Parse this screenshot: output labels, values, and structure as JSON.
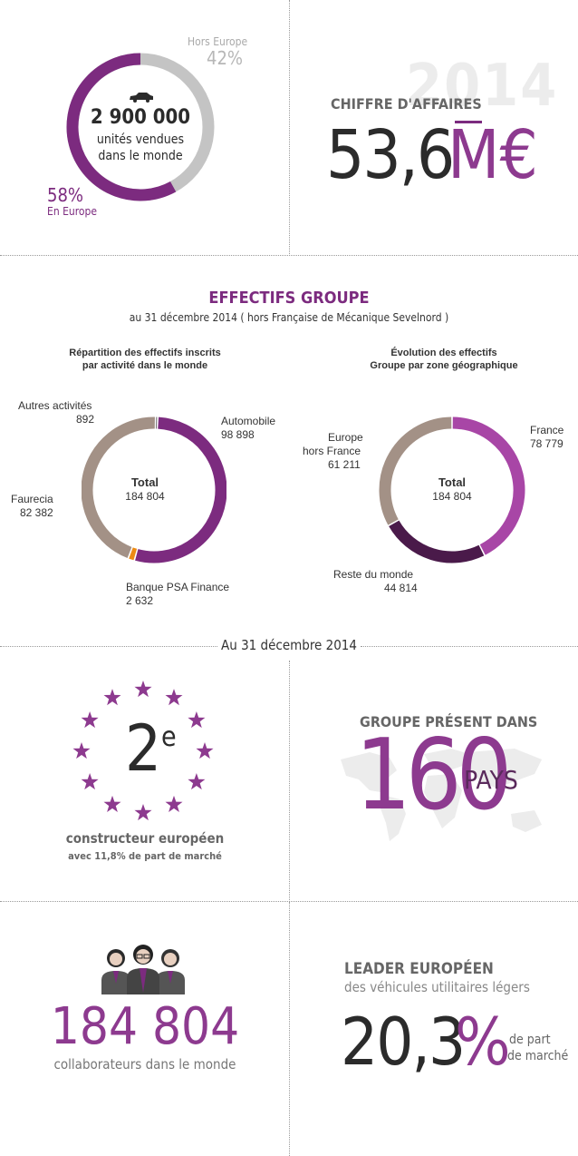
{
  "colors": {
    "purple": "#7c2b7f",
    "light_purple": "#a846a6",
    "dark_purple": "#4a1a4a",
    "grey": "#c4c4c4",
    "taupe": "#a39186",
    "orange": "#ec8a14",
    "dark": "#2b2b2b",
    "bg_grey": "#f4f4f4"
  },
  "sales": {
    "hors_europe_label": "Hors Europe",
    "hors_europe_pct": "42%",
    "europe_pct": "58%",
    "europe_label": "En Europe",
    "units": "2 900 000",
    "units_line1": "unités vendues",
    "units_line2": "dans le monde",
    "europe_share": 0.58,
    "car_icon": "car-icon"
  },
  "revenue": {
    "year": "2014",
    "title": "CHIFFRE D'AFFAIRES",
    "value": "53,6",
    "unit": "M€"
  },
  "effectifs": {
    "title": "EFFECTIFS GROUPE",
    "subtitle": "au 31 décembre 2014 ( hors Française de Mécanique Sevelnord )",
    "left_title_1": "Répartition des effectifs inscrits",
    "left_title_2": "par activité dans le monde",
    "right_title_1": "Évolution des effectifs",
    "right_title_2": "Groupe par zone géographique"
  },
  "chart_data": [
    {
      "type": "pie",
      "title": "Répartition des effectifs inscrits par activité dans le monde",
      "center_label": "Total",
      "center_value": "184 804",
      "slices": [
        {
          "name": "Automobile",
          "label": "98 898",
          "value": 98898,
          "color": "#7c2b7f"
        },
        {
          "name": "Banque PSA Finance",
          "label": "2 632",
          "value": 2632,
          "color": "#ec8a14"
        },
        {
          "name": "Faurecia",
          "label": "82 382",
          "value": 82382,
          "color": "#a39186"
        },
        {
          "name": "Autres activités",
          "label": "892",
          "value": 892,
          "color": "#2b2b2b"
        }
      ]
    },
    {
      "type": "pie",
      "title": "Évolution des effectifs Groupe par zone géographique",
      "center_label": "Total",
      "center_value": "184 804",
      "slices": [
        {
          "name": "France",
          "label": "78 779",
          "value": 78779,
          "color": "#a846a6"
        },
        {
          "name": "Reste du monde",
          "label": "44 814",
          "value": 44814,
          "color": "#4a1a4a"
        },
        {
          "name": "Europe hors France",
          "label": "61 211",
          "value": 61211,
          "color": "#a39186"
        }
      ]
    }
  ],
  "labels": {
    "automobile": "Automobile",
    "automobile_val": "98 898",
    "autres": "Autres activités",
    "autres_val": "892",
    "faurecia": "Faurecia",
    "faurecia_val": "82 382",
    "banque": "Banque PSA Finance",
    "banque_val": "2 632",
    "france": "France",
    "france_val": "78 779",
    "europe_1": "Europe",
    "europe_2": "hors France",
    "europe_val": "61 211",
    "reste": "Reste du monde",
    "reste_val": "44 814",
    "total": "Total",
    "total_val": "184 804"
  },
  "date_divider": "Au 31 décembre 2014",
  "constructeur": {
    "rank": "2",
    "rank_suffix": "e",
    "line1": "constructeur européen",
    "line2": "avec 11,8% de part de marché",
    "star_icon": "star-icon"
  },
  "presence": {
    "title": "GROUPE PRÉSENT DANS",
    "number": "160",
    "unit": "PAYS",
    "map_icon": "world-map-icon"
  },
  "collaborateurs": {
    "value": "184 804",
    "label": "collaborateurs dans le monde",
    "people_icon": "people-icon"
  },
  "leader": {
    "title": "LEADER EUROPÉEN",
    "subtitle": "des véhicules utilitaires légers",
    "value": "20,3",
    "pct": "%",
    "suffix_1": "de part",
    "suffix_2": "de marché"
  }
}
